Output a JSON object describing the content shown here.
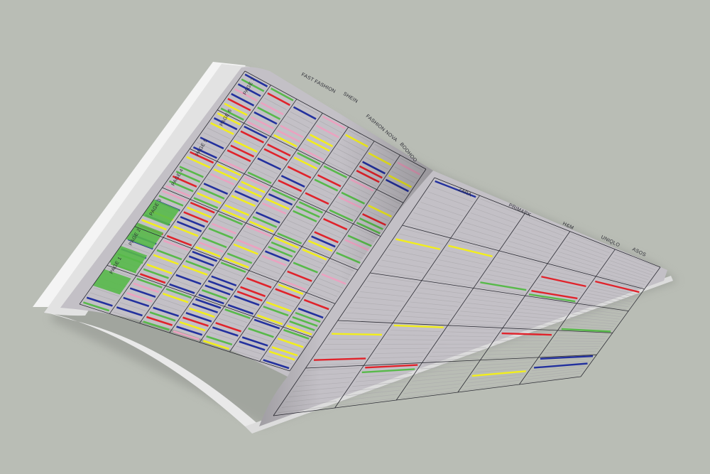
{
  "photo": {
    "subject": "",
    "left_page": {
      "column_labels": [
        "FAST FASHION",
        "SHEIN",
        "FASHION NOVA",
        "BOOHOO"
      ],
      "left_column_headers": [
        "PAGE 1",
        "PAGE 2",
        "PAGE 3",
        "PAGE 4",
        "PAGE 5",
        "PAGE 6",
        "PAGE 7"
      ]
    },
    "right_page": {
      "column_labels": [
        "ZARA",
        "PRIMARK",
        "H&M",
        "UNIQLO",
        "ASOS"
      ]
    },
    "colors": {
      "background": "#b9bdb5",
      "page": "#c3c0c6",
      "grid_line": "#2b2b33",
      "yellow": "#f2ee1c",
      "green": "#58b94a",
      "blue": "#23319e",
      "red": "#e0232b",
      "pink": "#eba2c0",
      "grey_stripe": "#a9a7ab"
    }
  }
}
